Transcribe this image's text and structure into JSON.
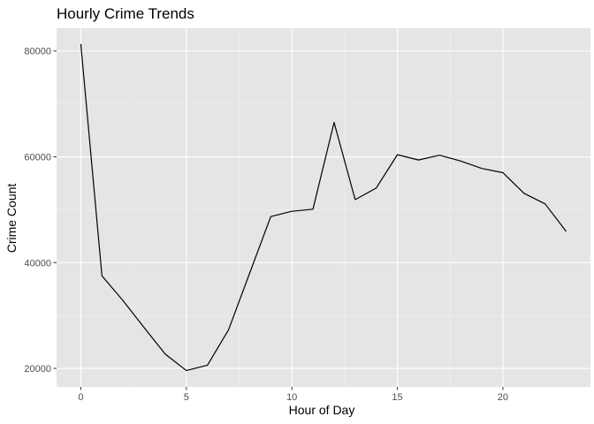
{
  "chart_data": {
    "type": "line",
    "title": "Hourly Crime Trends",
    "xlabel": "Hour of Day",
    "ylabel": "Crime Count",
    "x": [
      0,
      1,
      2,
      3,
      4,
      5,
      6,
      7,
      8,
      9,
      10,
      11,
      12,
      13,
      14,
      15,
      16,
      17,
      18,
      19,
      20,
      21,
      22,
      23
    ],
    "series": [
      {
        "values": [
          81300,
          37500,
          32800,
          27700,
          22700,
          19600,
          20600,
          27300,
          38000,
          48700,
          49700,
          50100,
          66500,
          51900,
          54100,
          60400,
          59400,
          60300,
          59200,
          57800,
          57000,
          53100,
          51100,
          45900
        ]
      }
    ],
    "xlim": [
      -1.15,
      24.15
    ],
    "ylim": [
      16500,
      84300
    ],
    "x_ticks": [
      0,
      5,
      10,
      15,
      20
    ],
    "x_tick_labels": [
      "0",
      "5",
      "10",
      "15",
      "20"
    ],
    "y_ticks": [
      20000,
      40000,
      60000,
      80000
    ],
    "y_tick_labels": [
      "20000",
      "40000",
      "60000",
      "80000"
    ],
    "grid": true,
    "legend": "none",
    "colors": {
      "panel_background": "#e5e5e5",
      "grid_major": "#ffffff",
      "grid_minor": "#f2f2f2",
      "line": "#000000",
      "tick_text": "#4d4d4d",
      "tick_mark": "#333333"
    }
  }
}
